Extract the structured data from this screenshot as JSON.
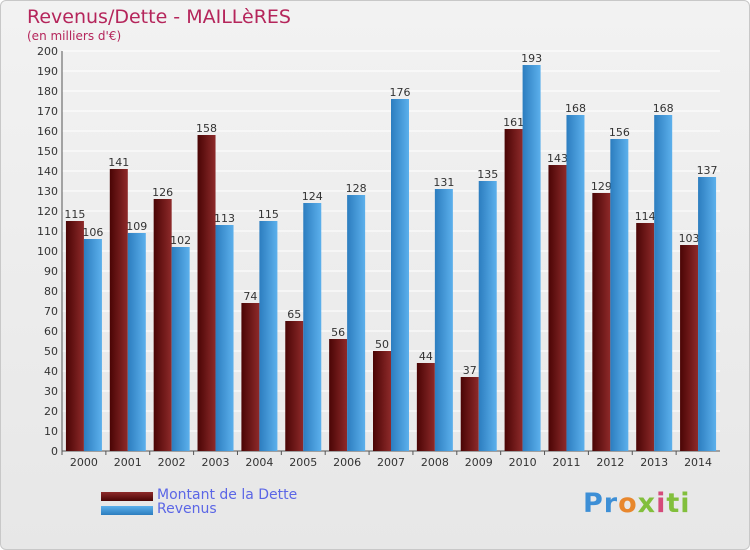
{
  "chart_data": {
    "type": "bar",
    "title": "Revenus/Dette - MAILLèRES",
    "subtitle": "(en milliers d'€)",
    "categories": [
      "2000",
      "2001",
      "2002",
      "2003",
      "2004",
      "2005",
      "2006",
      "2007",
      "2008",
      "2009",
      "2010",
      "2011",
      "2012",
      "2013",
      "2014"
    ],
    "series": [
      {
        "name": "Montant de la Dette",
        "values": [
          115,
          141,
          126,
          158,
          74,
          65,
          56,
          50,
          44,
          37,
          161,
          143,
          129,
          114,
          103
        ]
      },
      {
        "name": "Revenus",
        "values": [
          106,
          109,
          102,
          113,
          115,
          124,
          128,
          176,
          131,
          135,
          193,
          168,
          156,
          168,
          137
        ]
      }
    ],
    "ylim": [
      0,
      200
    ],
    "ytick_step": 10,
    "grid": true,
    "legend_position": "bottom-left"
  },
  "colors": {
    "title": "#b5255b",
    "debt_top": "#8e2a2a",
    "debt_bottom": "#4a0505",
    "revenue_top": "#5cb0ec",
    "revenue_bottom": "#2c7dbf",
    "legend_text": "#5b66e6"
  },
  "logo": {
    "text": "Proxiti",
    "parts": [
      "Pr",
      "o",
      "x",
      "i",
      "ti"
    ]
  }
}
